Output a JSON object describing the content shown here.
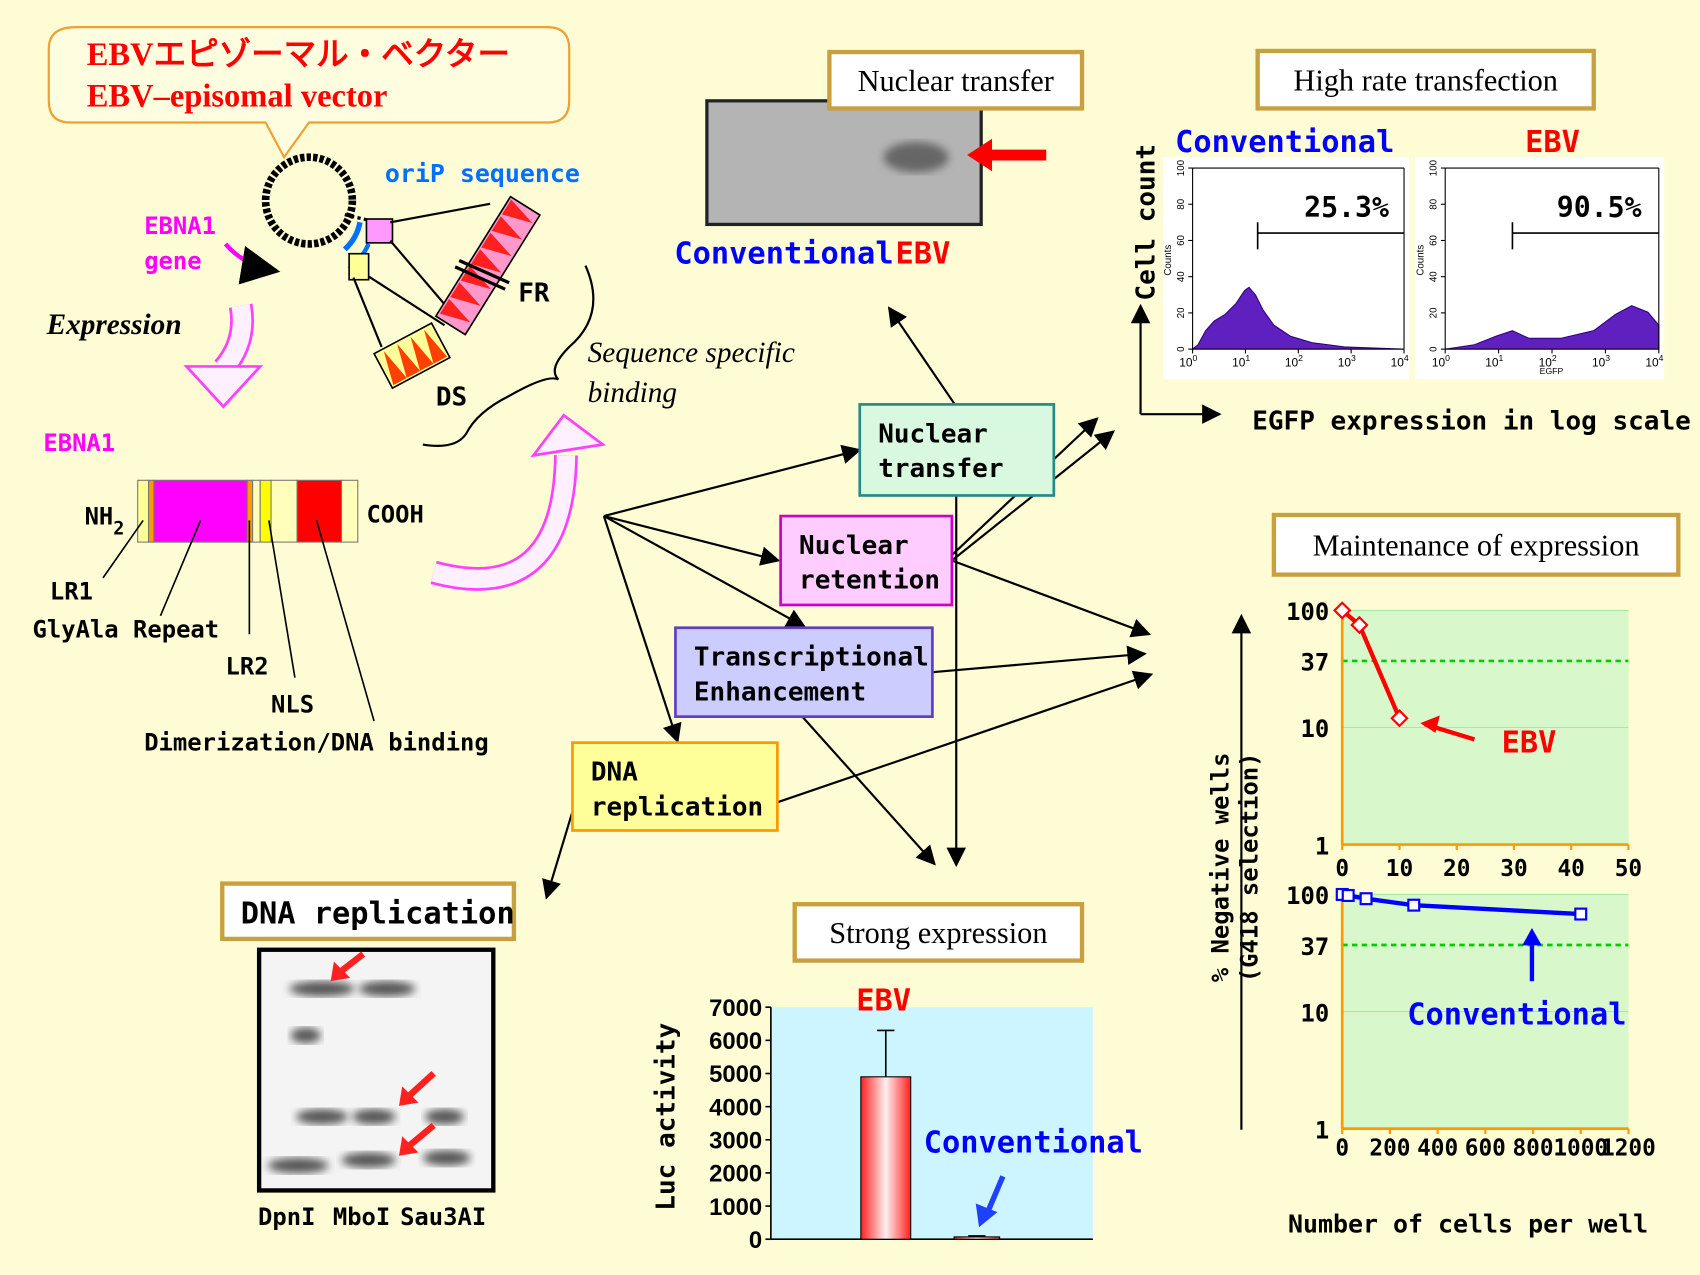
{
  "callout": {
    "japanese": "EBVエピゾーマル・ベクター",
    "english": "EBV–episomal vector"
  },
  "vector": {
    "orip": "oriP sequence",
    "ebna1_gene": [
      "EBNA1",
      "gene"
    ],
    "fr": "FR",
    "ds": "DS",
    "binding": [
      "Sequence specific",
      "binding"
    ],
    "expression": "Expression"
  },
  "ebna1_protein": {
    "name": "EBNA1",
    "n_term": "NH",
    "n_term_sub": "2",
    "c_term": "COOH",
    "domains": [
      "LR1",
      "GlyAla Repeat",
      "LR2",
      "NLS",
      "Dimerization/DNA binding"
    ]
  },
  "nuclear_transfer_panel": {
    "title": "Nuclear transfer",
    "labels": [
      "Conventional",
      "EBV"
    ]
  },
  "transfection_panel": {
    "title": "High rate transfection",
    "y_label": "Cell count",
    "x_label": "EGFP expression in log scale",
    "histograms": [
      {
        "name": "Conventional",
        "percent": "25.3%"
      },
      {
        "name": "EBV",
        "percent": "90.5%"
      }
    ],
    "count_label": "Counts",
    "egfp_label": "EGFP",
    "yticks": [
      0,
      20,
      40,
      60,
      80,
      100
    ],
    "xtick_base": "10",
    "xtick_exponents": [
      0,
      1,
      2,
      3,
      4
    ]
  },
  "flow": {
    "boxes": [
      [
        "Nuclear",
        "transfer"
      ],
      [
        "Nuclear",
        "retention"
      ],
      [
        "Transcriptional",
        "Enhancement"
      ],
      [
        "DNA",
        "replication"
      ]
    ]
  },
  "maintenance_panel": {
    "title": "Maintenance of expression",
    "y_label": [
      "% Negative wells",
      "(G418 selection)"
    ],
    "x_label": "Number of cells per well",
    "ylim": [
      1,
      100
    ],
    "yticks": [
      1,
      10,
      37,
      100
    ],
    "charts": [
      {
        "name": "EBV",
        "color": "#ff0000",
        "x": [
          0,
          3,
          10
        ],
        "values": [
          100,
          75,
          12
        ],
        "xlim": [
          0,
          50
        ],
        "xticks": [
          0,
          10,
          20,
          30,
          40,
          50
        ]
      },
      {
        "name": "Conventional",
        "color": "#0000ff",
        "x": [
          0,
          25,
          100,
          300,
          1000
        ],
        "values": [
          100,
          98,
          92,
          81,
          68
        ],
        "xlim": [
          0,
          1200
        ],
        "xticks": [
          0,
          200,
          400,
          600,
          800,
          1000,
          1200
        ]
      }
    ]
  },
  "replication_panel": {
    "title": "DNA replication",
    "lanes": [
      "DpnI",
      "MboI",
      "Sau3AI"
    ]
  },
  "expression_panel": {
    "title": "Strong expression",
    "y_label": "Luc activity",
    "categories": [
      "EBV",
      "Conventional"
    ],
    "values": [
      4900,
      70
    ],
    "errors": [
      1400,
      30
    ],
    "ylim": [
      0,
      7000
    ],
    "yticks": [
      0,
      1000,
      2000,
      3000,
      4000,
      5000,
      6000,
      7000
    ]
  }
}
